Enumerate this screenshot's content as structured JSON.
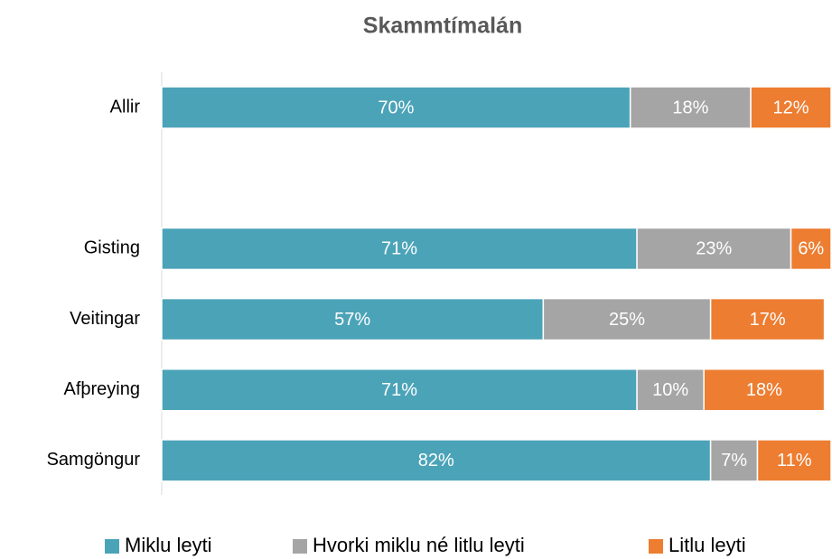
{
  "chart_data": {
    "type": "stacked_barh",
    "title": "Skammtímalán",
    "categories": [
      "Allir",
      null,
      "Gisting",
      "Veitingar",
      "Afþreying",
      "Samgöngur"
    ],
    "series": [
      {
        "name": "Miklu leyti",
        "color": "#4ba3b8",
        "values": [
          70,
          null,
          71,
          57,
          71,
          82
        ],
        "value_labels": [
          "70%",
          null,
          "71%",
          "57%",
          "71%",
          "82%"
        ]
      },
      {
        "name": "Hvorki miklu né litlu leyti",
        "color": "#a5a5a5",
        "values": [
          18,
          null,
          23,
          25,
          10,
          7
        ],
        "value_labels": [
          "18%",
          null,
          "23%",
          "25%",
          "10%",
          "7%"
        ]
      },
      {
        "name": "Litlu leyti",
        "color": "#ed7d31",
        "values": [
          12,
          null,
          6,
          17,
          18,
          11
        ],
        "value_labels": [
          "12%",
          null,
          "6%",
          "17%",
          "18%",
          "11%"
        ]
      }
    ],
    "xlim": [
      0,
      100
    ],
    "legend": "bottom"
  }
}
